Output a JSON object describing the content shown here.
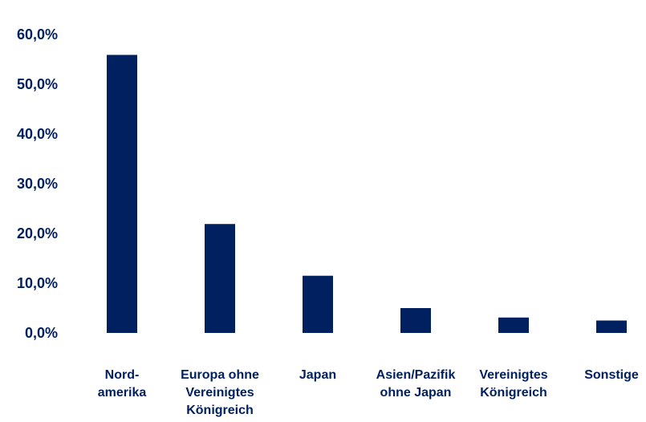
{
  "chart_data": {
    "type": "bar",
    "title": "",
    "xlabel": "",
    "ylabel": "",
    "categories": [
      [
        "Nord-",
        "amerika"
      ],
      [
        "Europa ohne",
        "Vereinigtes",
        "Königreich"
      ],
      [
        "Japan"
      ],
      [
        "Asien/Pazifik",
        "ohne Japan"
      ],
      [
        "Vereinigtes",
        "Königreich"
      ],
      [
        "Sonstige"
      ]
    ],
    "values": [
      55.9,
      21.9,
      11.5,
      5.0,
      3.1,
      2.5
    ],
    "ylim": [
      0,
      60
    ],
    "yticks": [
      "0,0%",
      "10,0%",
      "20,0%",
      "30,0%",
      "40,0%",
      "50,0%",
      "60,0%"
    ],
    "grid": false,
    "legend": "none",
    "bar_color": "#002060",
    "text_color": "#002060"
  }
}
